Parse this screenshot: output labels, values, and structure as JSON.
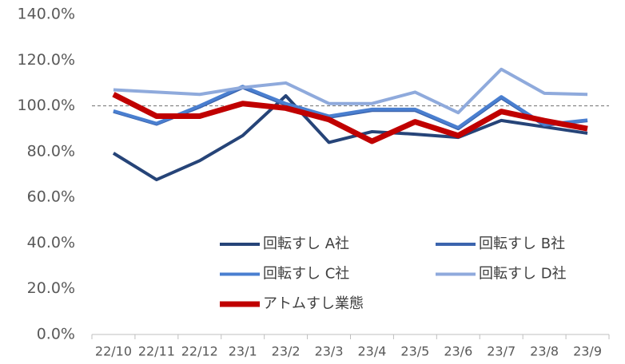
{
  "chart_data": {
    "type": "line",
    "categories": [
      "22/10",
      "22/11",
      "22/12",
      "23/1",
      "23/2",
      "23/3",
      "23/4",
      "23/5",
      "23/6",
      "23/7",
      "23/8",
      "23/9"
    ],
    "series": [
      {
        "name": "回転すし A社",
        "color": "#264478",
        "width": 4,
        "values": [
          79.3,
          67.7,
          76,
          87,
          104.4,
          84,
          88.7,
          87.6,
          86.2,
          93.6,
          90.8,
          88
        ]
      },
      {
        "name": "回転すし B社",
        "color": "#3b64ad",
        "width": 4,
        "values": [
          97.5,
          92,
          99.5,
          108,
          100.5,
          95,
          98,
          98,
          90,
          103.5,
          91.5,
          93.5
        ]
      },
      {
        "name": "回転すし C社",
        "color": "#4a7fd0",
        "width": 4,
        "values": [
          97.8,
          92.3,
          100,
          108.5,
          101,
          95.5,
          98.5,
          98.5,
          90.5,
          104,
          91.8,
          93.8
        ]
      },
      {
        "name": "回転すし D社",
        "color": "#8faadc",
        "width": 4,
        "values": [
          107,
          106,
          105,
          108,
          110,
          101,
          101,
          106,
          97,
          116,
          105.5,
          105
        ]
      },
      {
        "name": "アトムすし業態",
        "color": "#c00000",
        "width": 7,
        "values": [
          105,
          95.5,
          95.5,
          101,
          99,
          94,
          84.5,
          93,
          87,
          97.5,
          93.5,
          90
        ]
      }
    ],
    "ylim": [
      0,
      140
    ],
    "yticks": [
      {
        "value": 0,
        "label": "0.0%"
      },
      {
        "value": 20,
        "label": "20.0%"
      },
      {
        "value": 40,
        "label": "40.0%"
      },
      {
        "value": 60,
        "label": "60.0%"
      },
      {
        "value": 80,
        "label": "80.0%"
      },
      {
        "value": 100,
        "label": "100.0%"
      },
      {
        "value": 120,
        "label": "120.0%"
      },
      {
        "value": 140,
        "label": "140.0%"
      }
    ],
    "reference_line": 100,
    "grid": false
  }
}
